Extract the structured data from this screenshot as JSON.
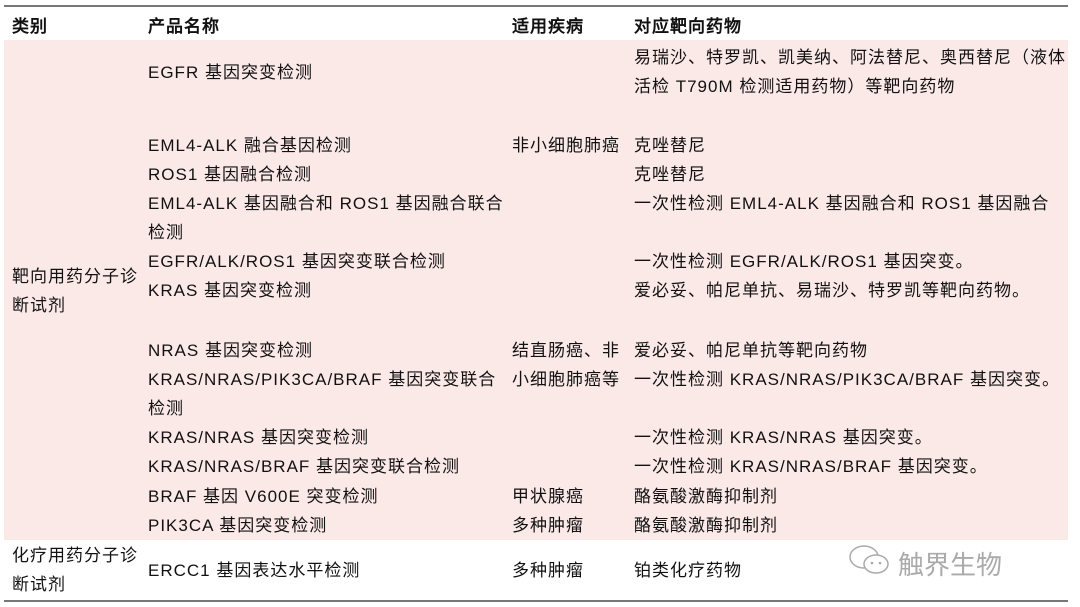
{
  "headers": [
    "类别",
    "产品名称",
    "适用疾病",
    "对应靶向药物"
  ],
  "groups": [
    {
      "category": "靶向用药分子诊断试剂"
    },
    {
      "category": "化疗用药分子诊断试剂"
    }
  ],
  "rows": [
    {
      "product": "EGFR 基因突变检测",
      "drug": "易瑞沙、特罗凯、凯美纳、阿法替尼、奥西替尼（液体活检 T790M 检测适用药物）等靶向药物"
    },
    {
      "product": "EML4-ALK 融合基因检测",
      "drug": "克唑替尼"
    },
    {
      "product": "ROS1 基因融合检测",
      "drug": "克唑替尼"
    },
    {
      "product": "EML4-ALK 基因融合和 ROS1 基因融合联合检测",
      "drug": "一次性检测 EML4-ALK 基因融合和 ROS1 基因融合"
    },
    {
      "product": "EGFR/ALK/ROS1 基因突变联合检测",
      "drug": "一次性检测 EGFR/ALK/ROS1 基因突变。"
    },
    {
      "product": "KRAS 基因突变检测",
      "drug": "爱必妥、帕尼单抗、易瑞沙、特罗凯等靶向药物。"
    },
    {
      "product": "NRAS 基因突变检测",
      "drug": "爱必妥、帕尼单抗等靶向药物"
    },
    {
      "product": "KRAS/NRAS/PIK3CA/BRAF 基因突变联合检测",
      "drug": "一次性检测 KRAS/NRAS/PIK3CA/BRAF 基因突变。"
    },
    {
      "product": "KRAS/NRAS 基因突变检测",
      "drug": "一次性检测 KRAS/NRAS 基因突变。"
    },
    {
      "product": "KRAS/NRAS/BRAF 基因突变联合检测",
      "drug": "一次性检测 KRAS/NRAS/BRAF 基因突变。"
    },
    {
      "product": "BRAF 基因 V600E 突变检测",
      "drug": "酪氨酸激酶抑制剂"
    },
    {
      "product": "PIK3CA 基因突变检测",
      "drug": "酪氨酸激酶抑制剂"
    },
    {
      "product": "ERCC1 基因表达水平检测",
      "drug": "铂类化疗药物"
    }
  ],
  "diseases": [
    "非小细胞肺癌",
    "结直肠癌、非小细胞肺癌等",
    "甲状腺癌",
    "多种肿瘤",
    "多种肿瘤"
  ],
  "watermark": {
    "text": "触界生物",
    "icon": "wechat-icon"
  }
}
